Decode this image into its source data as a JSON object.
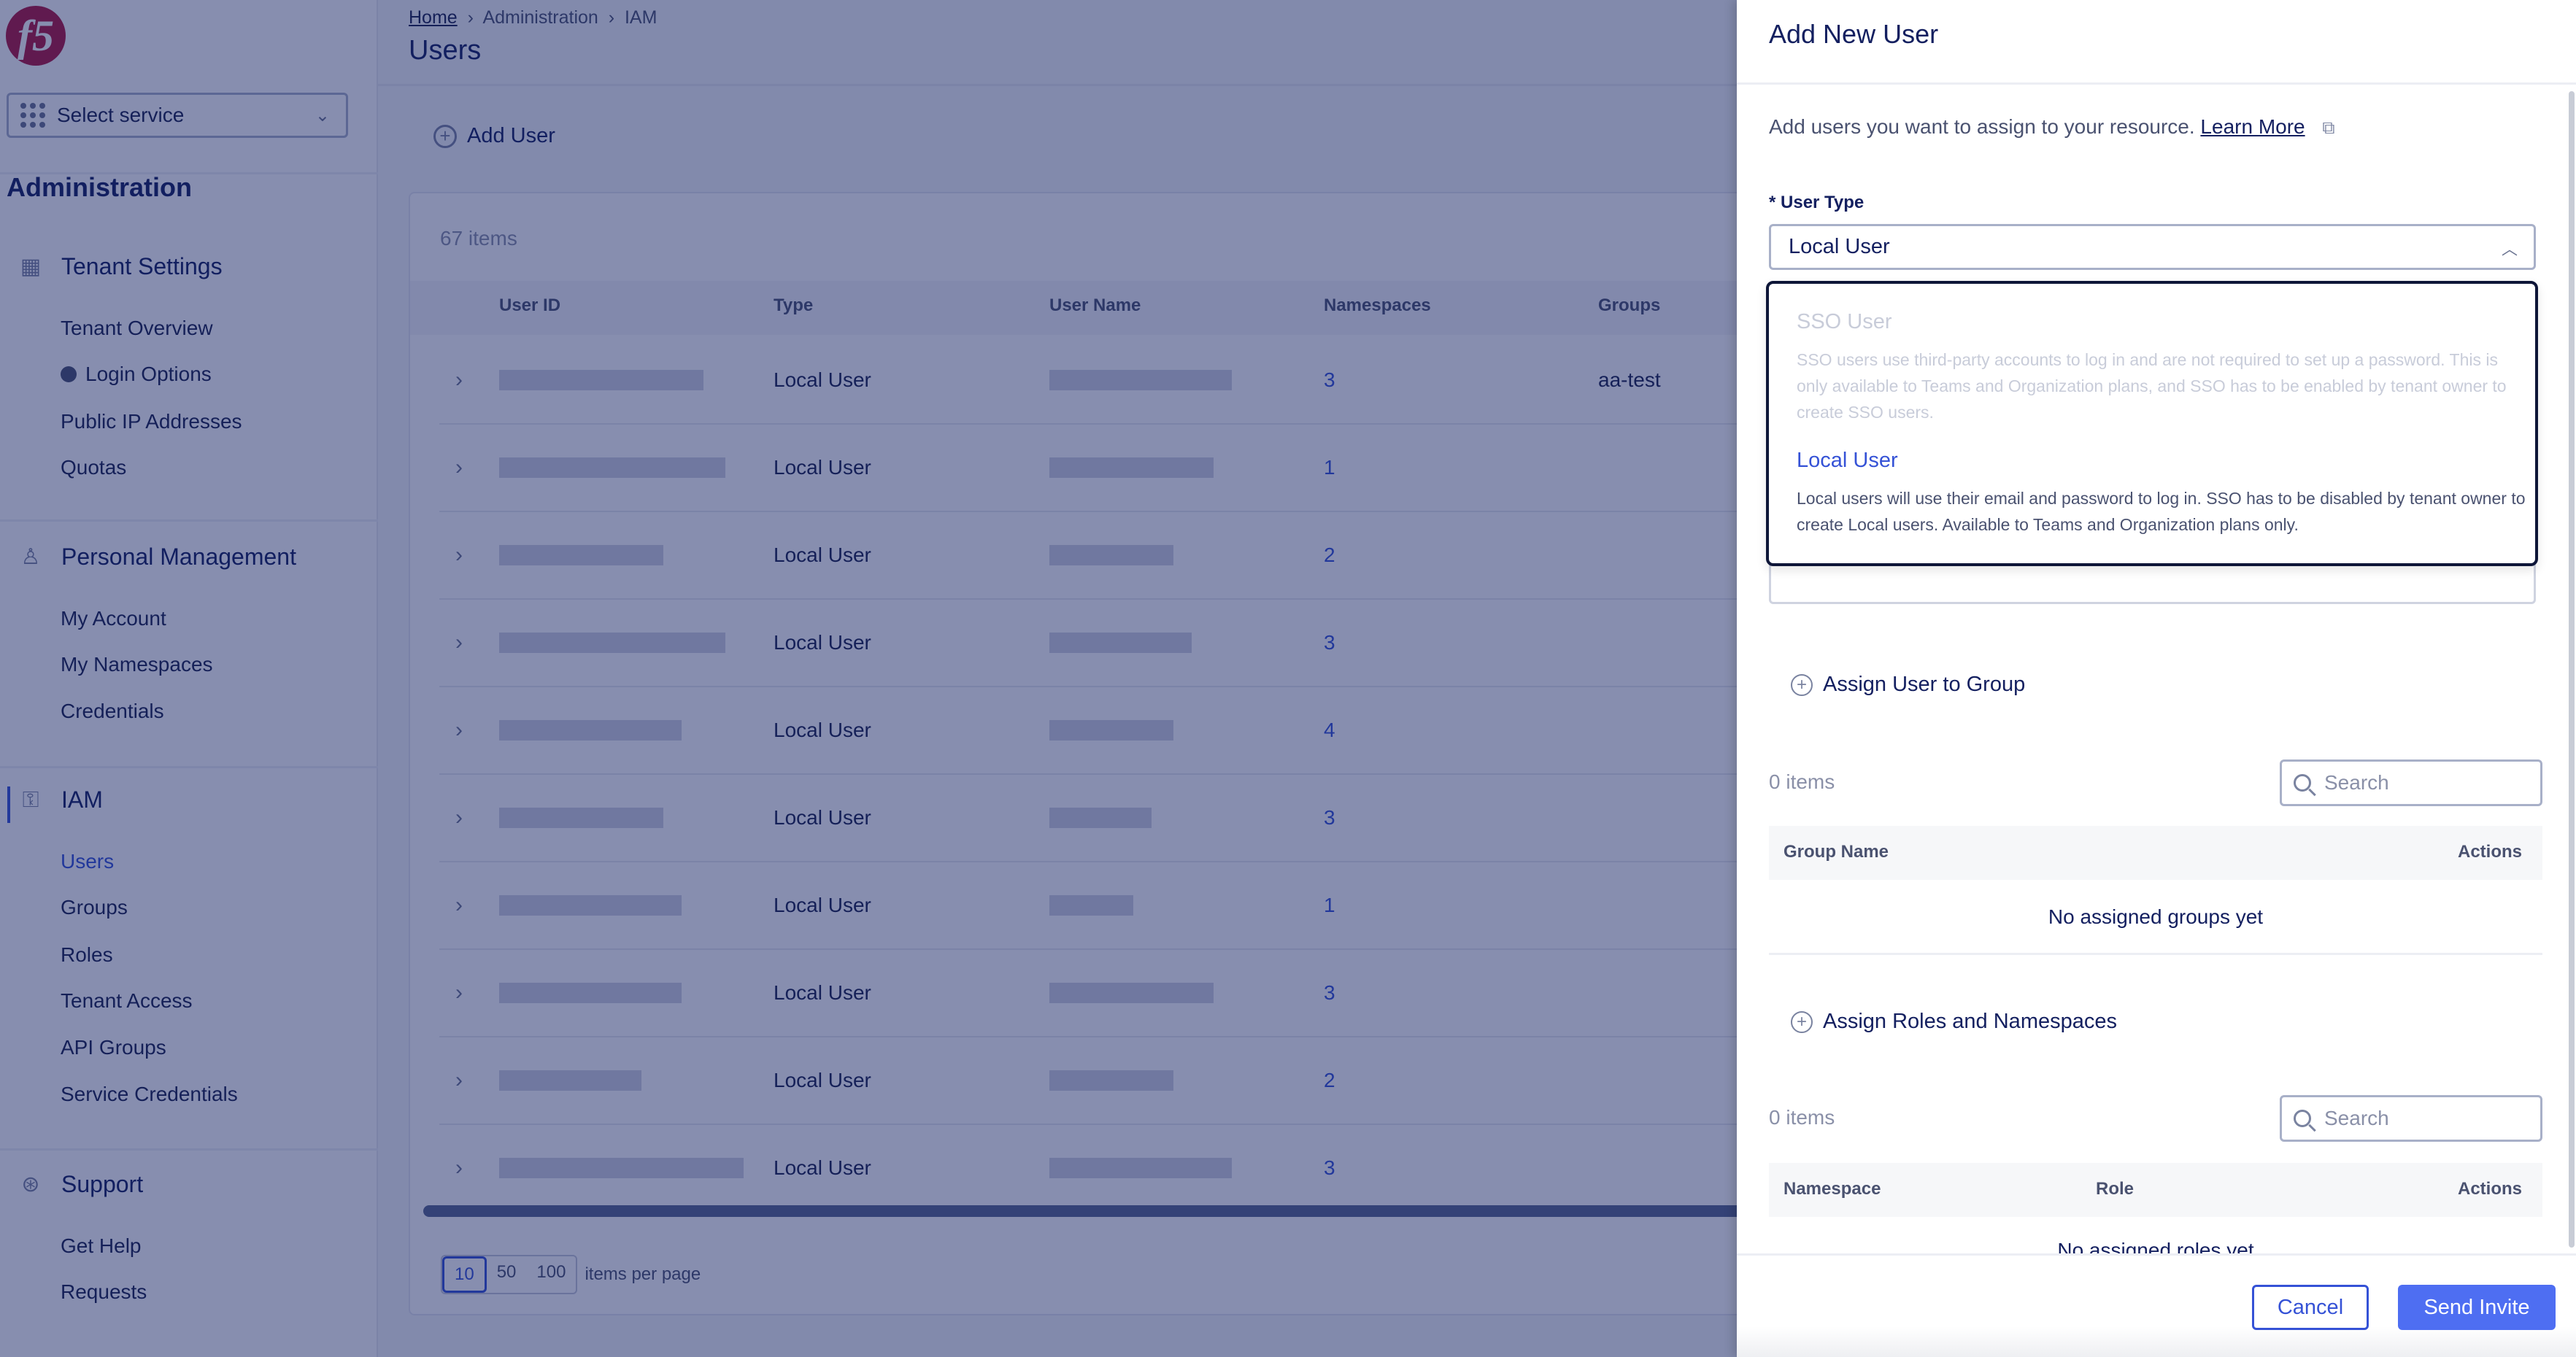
{
  "sidebar": {
    "logo_text": "f5",
    "service_select": "Select service",
    "section_title": "Administration",
    "groups": [
      {
        "label": "Tenant Settings",
        "icon": "building-gear-icon",
        "items": [
          "Tenant Overview",
          "Login Options",
          "Public IP Addresses",
          "Quotas"
        ]
      },
      {
        "label": "Personal Management",
        "icon": "person-gear-icon",
        "items": [
          "My Account",
          "My Namespaces",
          "Credentials"
        ]
      },
      {
        "label": "IAM",
        "icon": "key-icon",
        "items": [
          "Users",
          "Groups",
          "Roles",
          "Tenant Access",
          "API Groups",
          "Service Credentials"
        ]
      },
      {
        "label": "Support",
        "icon": "lifebuoy-icon",
        "items": [
          "Get Help",
          "Requests"
        ]
      }
    ],
    "active_item": "Users"
  },
  "main": {
    "breadcrumb": [
      "Home",
      "Administration",
      "IAM"
    ],
    "title": "Users",
    "add_user": "Add User",
    "count": "67 items",
    "columns": [
      "User ID",
      "Type",
      "User Name",
      "Namespaces",
      "Groups"
    ],
    "rows": [
      {
        "type": "Local User",
        "namespaces": "3",
        "groups": "aa-test"
      },
      {
        "type": "Local User",
        "namespaces": "1",
        "groups": ""
      },
      {
        "type": "Local User",
        "namespaces": "2",
        "groups": ""
      },
      {
        "type": "Local User",
        "namespaces": "3",
        "groups": ""
      },
      {
        "type": "Local User",
        "namespaces": "4",
        "groups": ""
      },
      {
        "type": "Local User",
        "namespaces": "3",
        "groups": ""
      },
      {
        "type": "Local User",
        "namespaces": "1",
        "groups": ""
      },
      {
        "type": "Local User",
        "namespaces": "3",
        "groups": ""
      },
      {
        "type": "Local User",
        "namespaces": "2",
        "groups": ""
      },
      {
        "type": "Local User",
        "namespaces": "3",
        "groups": ""
      }
    ],
    "page_sizes": [
      "10",
      "50",
      "100"
    ],
    "page_size_selected": "10",
    "per_page_label": "items per page"
  },
  "drawer": {
    "title": "Add New User",
    "description": "Add users you want to assign to your resource.",
    "learn_more": "Learn More",
    "user_type_label": "* User Type",
    "user_type_value": "Local User",
    "options": [
      {
        "title": "SSO User",
        "desc": "SSO users use third-party accounts to log in and are not required to set up a password. This is only available to Teams and Organization plans, and SSO has to be enabled by tenant owner to create SSO users.",
        "disabled": true
      },
      {
        "title": "Local User",
        "desc": "Local users will use their email and password to log in. SSO has to be disabled by tenant owner to create Local users. Available to Teams and Organization plans only.",
        "disabled": false
      }
    ],
    "groups": {
      "assign": "Assign User to Group",
      "count": "0 items",
      "search_placeholder": "Search",
      "columns": [
        "Group Name",
        "Actions"
      ],
      "empty": "No assigned groups yet"
    },
    "roles": {
      "assign": "Assign Roles and Namespaces",
      "count": "0 items",
      "search_placeholder": "Search",
      "columns": [
        "Namespace",
        "Role",
        "Actions"
      ],
      "empty": "No assigned roles yet"
    },
    "cancel": "Cancel",
    "send": "Send Invite"
  },
  "colors": {
    "accent": "#3552d6",
    "primary_button": "#4e6ef2",
    "logo": "#b0163f",
    "overlay": "rgba(16,30,96,0.5)"
  }
}
